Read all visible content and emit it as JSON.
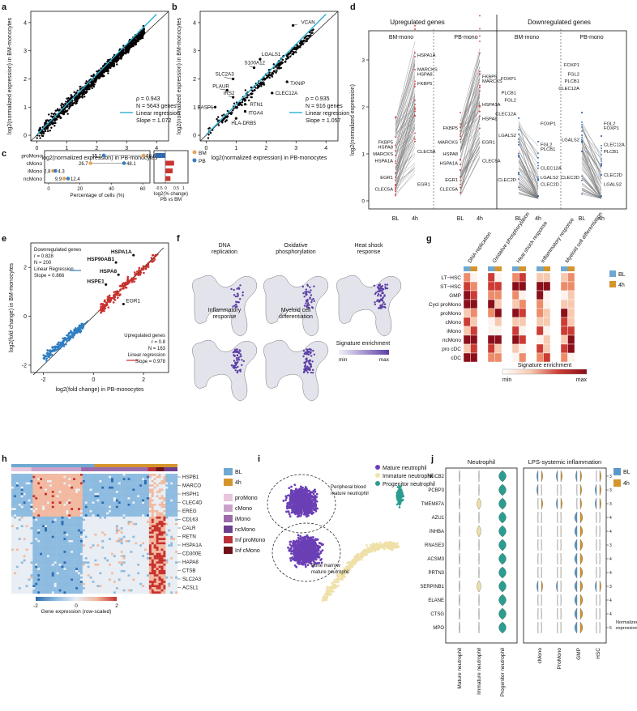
{
  "panels": {
    "a": "a",
    "b": "b",
    "c": "c",
    "d": "d",
    "e": "e",
    "f": "f",
    "g": "g",
    "h": "h",
    "i": "i",
    "j": "j"
  },
  "a": {
    "ylabel": "log2(normalized expression) in BM-monocytes",
    "xlabel": "log2(normalized expression) in PB-monocytes",
    "xticks": [
      "0",
      "1",
      "2",
      "3",
      "4"
    ],
    "yticks": [
      "0",
      "1",
      "2",
      "3",
      "4"
    ],
    "stats": [
      "ρ = 0.943",
      "N = 5643 genes",
      "Linear regression",
      "Slope = 1.072"
    ]
  },
  "b": {
    "ylabel": "log2(normalized expression) in BM-monocytes",
    "xlabel": "log2(normalized expression) in PB-monocytes",
    "xticks": [
      "0",
      "1",
      "2",
      "3",
      "4"
    ],
    "yticks": [
      "0",
      "1",
      "2",
      "3",
      "4"
    ],
    "labels": [
      "VCAN",
      "LGALS1",
      "S100A12",
      "SLC2A3",
      "TXNIP",
      "PLAUR",
      "IRS2",
      "CLEC12A",
      "BASP1",
      "RTN1",
      "ITGA4",
      "HLA-DRB5"
    ],
    "stats": [
      "ρ = 0.935",
      "N = 916 genes",
      "Linear regression",
      "Slope = 1.057"
    ]
  },
  "c": {
    "rows": [
      {
        "name": "proMono",
        "bm": 60.6,
        "pb": 35.1
      },
      {
        "name": "cMono",
        "bm": 26.7,
        "pb": 48.1
      },
      {
        "name": "iMono",
        "bm": 2.8,
        "pb": 4.3
      },
      {
        "name": "ncMono",
        "bm": 9.9,
        "pb": 12.4
      }
    ],
    "xlabel": "Percentage of cells (%)",
    "xticks": [
      "0",
      "20",
      "40",
      "60"
    ],
    "legend": [
      "BM",
      "PB"
    ],
    "sublabel": [
      "log2(% change)",
      "PB vs BM"
    ],
    "subticks": [
      "-0.5",
      "0",
      "0.5",
      "1"
    ]
  },
  "d": {
    "header_up": "Upregulated genes",
    "header_down": "Downregulated genes",
    "bm": "BM-mono",
    "pb": "PB-mono",
    "ylabel": "log2(normalized expression)",
    "yticks": [
      "0",
      "1",
      "2",
      "3"
    ],
    "x": [
      "BL",
      "4h"
    ],
    "up_bm_left": [
      "FKBP5",
      "HSPA8",
      "MARCKS",
      "HSPA1A",
      "EGR1",
      "CLEC5A"
    ],
    "up_bm_right": [
      "HSPA1A",
      "MARCKS",
      "HSPA8",
      "FKBP5",
      "CLEC5A",
      "EGR1"
    ],
    "up_pb_left": [
      "FKBP5",
      "MARCKS",
      "HSPA8",
      "HSPA1A",
      "EGR1",
      "CLEC5A"
    ],
    "up_pb_right": [
      "FKBP5",
      "MARCKS",
      "HSPA1A",
      "HSPA8",
      "EGR1",
      "CLEC5A"
    ],
    "dn_bm_left": [
      "FOXP1",
      "PLCB1",
      "FGL2",
      "CLEC12A",
      "LGALS2",
      "CLEC2D"
    ],
    "dn_bm_right": [
      "FOXP1",
      "FGL2",
      "PLCB1",
      "CLEC12A",
      "LGALS2",
      "CLEC2D"
    ],
    "dn_pb_left": [
      "FOXP1",
      "FGL2",
      "PLCB1",
      "CLEC12A",
      "LGALS2",
      "CLEC2D"
    ],
    "dn_pb_right": [
      "FGL2",
      "FOXP1",
      "CLEC12A",
      "PLCB1",
      "CLEC2D",
      "LGALS2"
    ]
  },
  "e": {
    "ylabel": "log2(fold change) in BM-monocytes",
    "xlabel": "log2(fold change) in PB-monocytes",
    "xticks": [
      "-2",
      "0",
      "2"
    ],
    "yticks": [
      "-2",
      "0",
      "2"
    ],
    "down": [
      "Downregulated genes",
      "r = 0.828",
      "N = 200",
      "Linear Regression",
      "Slope = 0.866"
    ],
    "up": [
      "Upregulated genes",
      "r = 0.8",
      "N = 163",
      "Linear regression",
      "Slope = 0.978"
    ],
    "labels": [
      "HSPA1A",
      "HSP90AB1",
      "HSPA8",
      "HSPE1",
      "EGR1"
    ]
  },
  "f": {
    "titles": [
      "DNA\nreplication",
      "Oxidative\nphosphorylation",
      "Heat shock\nresponse",
      "Inflammatory\nresponse",
      "Myeloid cell\ndifferentiation"
    ],
    "legend": "Signature enrichment",
    "min": "min",
    "max": "max"
  },
  "g": {
    "cols": [
      "DNA replication",
      "Oxidative phosphorylation",
      "Heat shock response",
      "Inflammatory response",
      "Myeloid cell differentiation"
    ],
    "rows": [
      "LT−HSC",
      "ST−HSC",
      "GMP",
      "Cycl proMono",
      "proMono",
      "cMono",
      "iMono",
      "ncMono",
      "pro cDC",
      "cDC"
    ],
    "legend": [
      "BL",
      "4h"
    ],
    "scale": "Signature enrichment",
    "min": "min",
    "max": "max"
  },
  "h": {
    "genes": [
      "HSPB1",
      "MARCO",
      "HSPH1",
      "CLEC4D",
      "EREG",
      "CD163",
      "CALR",
      "RETN",
      "HSPA1A",
      "CD300E",
      "HAPA8",
      "CTSB",
      "SLC2A3",
      "ACSL1"
    ],
    "legend": [
      "BL",
      "4h",
      "proMono",
      "cMono",
      "iMono",
      "ncMono",
      "Inf proMono",
      "Inf cMono"
    ],
    "legend_colors": [
      "#6fa8d0",
      "#d4952b",
      "#e8c6dc",
      "#c9a2cc",
      "#9b6bab",
      "#6e3f8f",
      "#b9323b",
      "#6f1218"
    ],
    "scale": "Gene expression (row-scaled)",
    "ticks": [
      "-2",
      "0",
      "2"
    ]
  },
  "i": {
    "legend": [
      "Mature neutrophil",
      "Immature neutrophil",
      "Progenitor neutrophil"
    ],
    "colors": [
      "#6b3fb5",
      "#f0e3b0",
      "#2a9d8f"
    ],
    "ann1": "Peripheral blood\nmature neutrophil",
    "ann2": "Bone marrow\nmature neutrophil"
  },
  "j": {
    "left_title": "Neutrophil",
    "right_title": "LPS-systemic inflammation",
    "genes": [
      "NUCB2",
      "PCBP3",
      "TMEM87A",
      "AZU1",
      "INHBA",
      "RNASE3",
      "ACSM3",
      "PRTN3",
      "SERPINB1",
      "ELANE",
      "CTSG",
      "MPO"
    ],
    "left_cols": [
      "Mature neutrophil",
      "Immature neutrophil",
      "Progenitor neutrophil"
    ],
    "right_cols": [
      "cMono",
      "ProMono",
      "GMP",
      "HSC"
    ],
    "legend": [
      "BL",
      "4h"
    ],
    "side": "Normalized\nexpression"
  }
}
